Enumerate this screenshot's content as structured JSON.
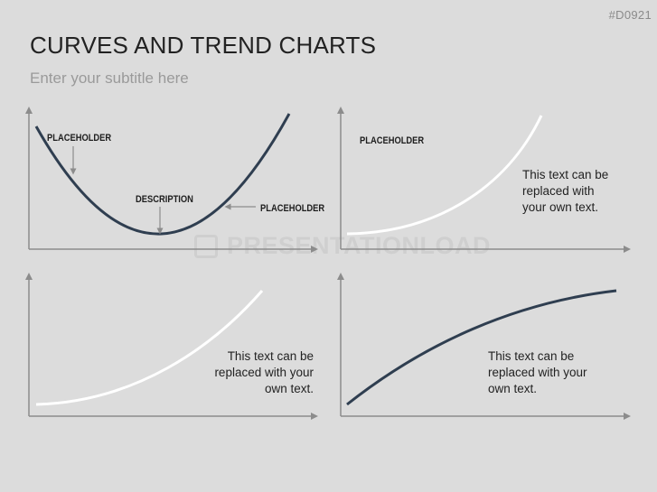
{
  "slide": {
    "code": "#D0921",
    "title": "CURVES AND TREND CHARTS",
    "subtitle": "Enter your subtitle here",
    "watermark": "PRESENTATIONLOAD"
  },
  "panels": {
    "top_left": {
      "label_placeholder_top": "PLACEHOLDER",
      "label_description": "DESCRIPTION",
      "label_placeholder_right": "PLACEHOLDER"
    },
    "top_right": {
      "label_placeholder": "PLACEHOLDER",
      "text_line1": "This text can be",
      "text_line2": "replaced with",
      "text_line3": "your own text."
    },
    "bottom_left": {
      "text_line1": "This text can be",
      "text_line2": "replaced with your",
      "text_line3": "own text."
    },
    "bottom_right": {
      "text_line1": "This text can be",
      "text_line2": "replaced with your",
      "text_line3": "own text."
    }
  },
  "colors": {
    "background": "#dcdcdc",
    "axis": "#8c8c8c",
    "dark_curve": "#2f3e50",
    "light_curve": "#ffffff"
  }
}
